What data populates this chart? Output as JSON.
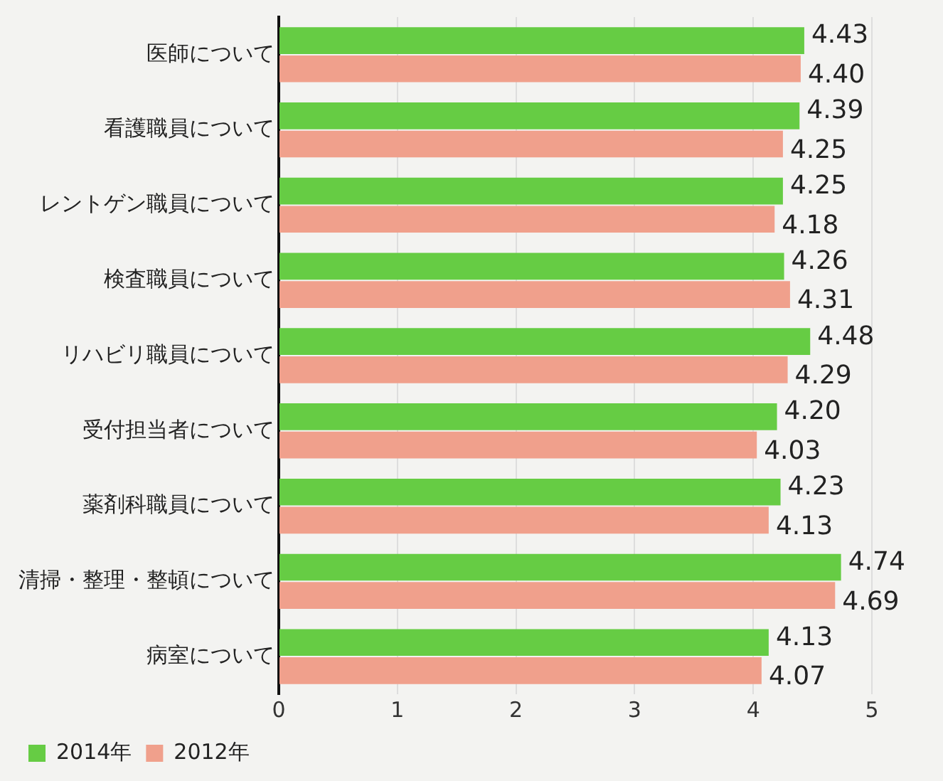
{
  "chart_data": {
    "type": "bar",
    "orientation": "horizontal",
    "categories": [
      "医師について",
      "看護職員について",
      "レントゲン職員について",
      "検査職員について",
      "リハビリ職員について",
      "受付担当者について",
      "薬剤科職員について",
      "清掃・整理・整頓について",
      "病室について"
    ],
    "series": [
      {
        "name": "2014年",
        "color": "#66cc44",
        "values": [
          4.43,
          4.39,
          4.25,
          4.26,
          4.48,
          4.2,
          4.23,
          4.74,
          4.13
        ],
        "value_labels": [
          "4.43",
          "4.39",
          "4.25",
          "4.26",
          "4.48",
          "4.20",
          "4.23",
          "4.74",
          "4.13"
        ]
      },
      {
        "name": "2012年",
        "color": "#f0a08c",
        "values": [
          4.4,
          4.25,
          4.18,
          4.31,
          4.29,
          4.03,
          4.13,
          4.69,
          4.07
        ],
        "value_labels": [
          "4.40",
          "4.25",
          "4.18",
          "4.31",
          "4.29",
          "4.03",
          "4.13",
          "4.69",
          "4.07"
        ]
      }
    ],
    "xlim": [
      0,
      5
    ],
    "xticks": [
      0,
      1,
      2,
      3,
      4,
      5
    ],
    "grid": "x",
    "legend": "bottom left"
  }
}
